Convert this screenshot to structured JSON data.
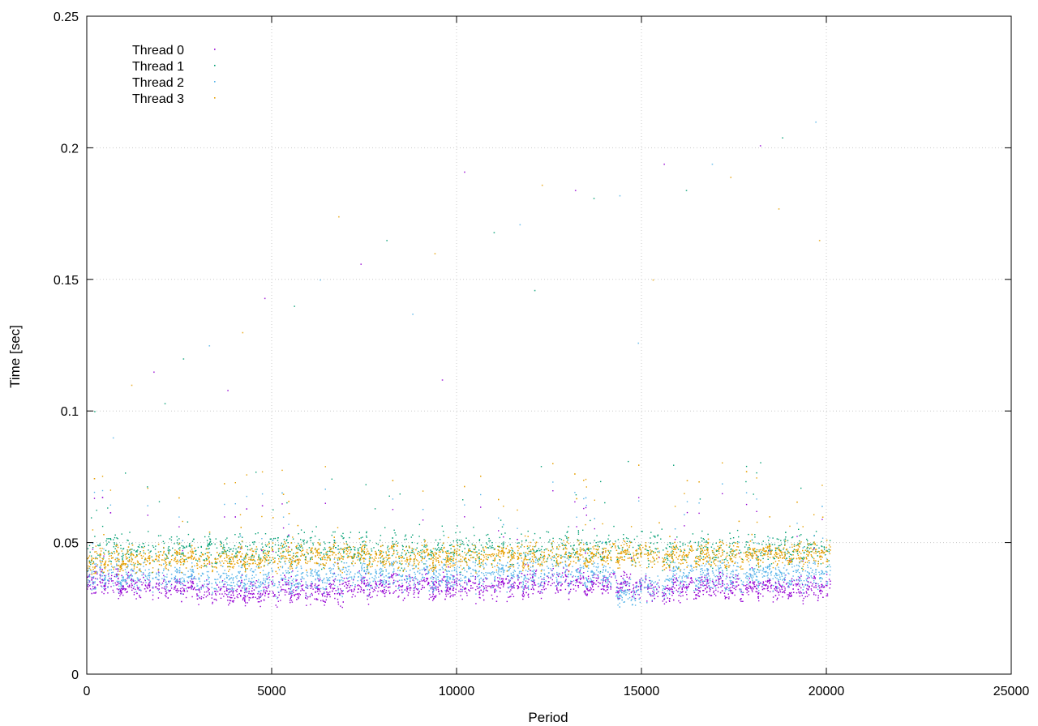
{
  "chart_data": {
    "type": "scatter",
    "title": "",
    "xlabel": "Period",
    "ylabel": "Time [sec]",
    "xlim": [
      0,
      25000
    ],
    "ylim": [
      0,
      0.25
    ],
    "x_ticks": [
      "0",
      "5000",
      "10000",
      "15000",
      "20000",
      "25000"
    ],
    "y_ticks": [
      "0",
      "0.05",
      "0.1",
      "0.15",
      "0.2",
      "0.25"
    ],
    "grid": true,
    "legend_position": "top-left",
    "x_range_of_data": [
      0,
      20100
    ],
    "series": [
      {
        "name": "Thread 0",
        "color": "#9400d3",
        "typical_range": [
          0.028,
          0.04
        ],
        "sample": [
          [
            0,
            0.036
          ],
          [
            1000,
            0.034
          ],
          [
            2500,
            0.033
          ],
          [
            4000,
            0.031
          ],
          [
            5500,
            0.032
          ],
          [
            6500,
            0.031
          ],
          [
            8000,
            0.034
          ],
          [
            9500,
            0.034
          ],
          [
            11000,
            0.033
          ],
          [
            12500,
            0.035
          ],
          [
            14000,
            0.035
          ],
          [
            15500,
            0.032
          ],
          [
            17000,
            0.034
          ],
          [
            18500,
            0.033
          ],
          [
            20000,
            0.033
          ]
        ]
      },
      {
        "name": "Thread 1",
        "color": "#009e73",
        "typical_range": [
          0.04,
          0.056
        ],
        "sample": [
          [
            0,
            0.047
          ],
          [
            2000,
            0.048
          ],
          [
            4000,
            0.047
          ],
          [
            6000,
            0.048
          ],
          [
            8000,
            0.047
          ],
          [
            10000,
            0.048
          ],
          [
            12000,
            0.047
          ],
          [
            14000,
            0.048
          ],
          [
            16000,
            0.047
          ],
          [
            18000,
            0.048
          ],
          [
            20000,
            0.047
          ]
        ]
      },
      {
        "name": "Thread 2",
        "color": "#56b4e9",
        "typical_range": [
          0.031,
          0.045
        ],
        "sample": [
          [
            0,
            0.038
          ],
          [
            2000,
            0.037
          ],
          [
            4000,
            0.036
          ],
          [
            6000,
            0.036
          ],
          [
            8000,
            0.038
          ],
          [
            10000,
            0.038
          ],
          [
            12000,
            0.038
          ],
          [
            14000,
            0.039
          ],
          [
            14500,
            0.03
          ],
          [
            16000,
            0.037
          ],
          [
            18000,
            0.038
          ],
          [
            20000,
            0.038
          ]
        ]
      },
      {
        "name": "Thread 3",
        "color": "#e69f00",
        "typical_range": [
          0.039,
          0.051
        ],
        "sample": [
          [
            0,
            0.043
          ],
          [
            2000,
            0.044
          ],
          [
            4000,
            0.044
          ],
          [
            6000,
            0.045
          ],
          [
            8000,
            0.045
          ],
          [
            10000,
            0.045
          ],
          [
            12000,
            0.045
          ],
          [
            14000,
            0.046
          ],
          [
            16000,
            0.045
          ],
          [
            18000,
            0.046
          ],
          [
            20000,
            0.046
          ]
        ]
      }
    ],
    "outliers": [
      [
        200,
        0.1
      ],
      [
        700,
        0.09
      ],
      [
        1200,
        0.11
      ],
      [
        1800,
        0.115
      ],
      [
        2600,
        0.12
      ],
      [
        3300,
        0.125
      ],
      [
        4200,
        0.13
      ],
      [
        4800,
        0.143
      ],
      [
        5600,
        0.14
      ],
      [
        6300,
        0.15
      ],
      [
        6800,
        0.174
      ],
      [
        7400,
        0.156
      ],
      [
        8100,
        0.165
      ],
      [
        8800,
        0.137
      ],
      [
        9400,
        0.16
      ],
      [
        10200,
        0.191
      ],
      [
        11000,
        0.168
      ],
      [
        11700,
        0.171
      ],
      [
        12300,
        0.186
      ],
      [
        13200,
        0.184
      ],
      [
        13700,
        0.181
      ],
      [
        14400,
        0.182
      ],
      [
        15300,
        0.15
      ],
      [
        15600,
        0.194
      ],
      [
        16200,
        0.184
      ],
      [
        16900,
        0.194
      ],
      [
        17400,
        0.189
      ],
      [
        18200,
        0.201
      ],
      [
        18800,
        0.204
      ],
      [
        19700,
        0.21
      ],
      [
        19800,
        0.165
      ],
      [
        9600,
        0.112
      ],
      [
        12100,
        0.146
      ],
      [
        14900,
        0.126
      ],
      [
        18700,
        0.177
      ],
      [
        3800,
        0.108
      ],
      [
        2100,
        0.103
      ]
    ]
  }
}
